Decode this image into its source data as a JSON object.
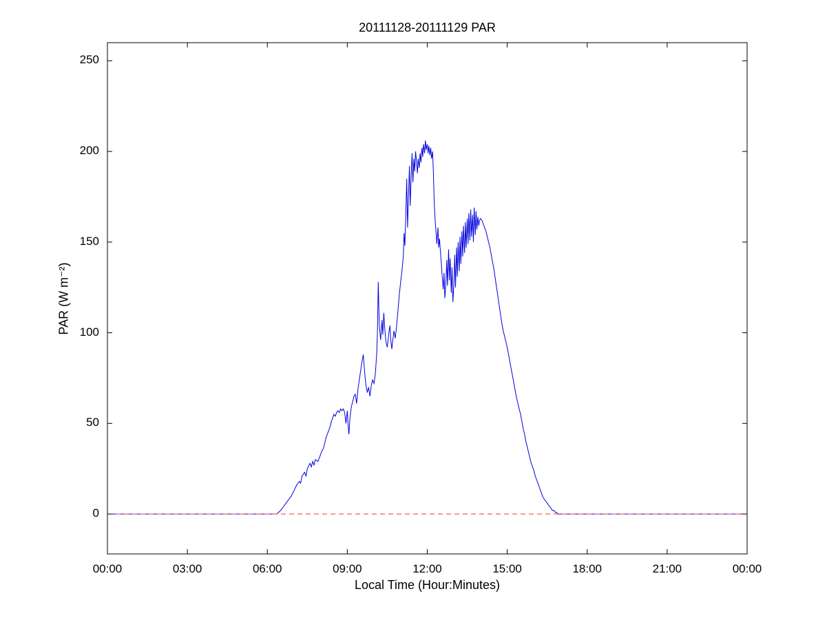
{
  "chart_data": {
    "type": "line",
    "title": "20111128-20111129 PAR",
    "xlabel": "Local Time (Hour:Minutes)",
    "ylabel": "PAR (W m⁻²)",
    "xlim": [
      0,
      24
    ],
    "ylim": [
      -22,
      260
    ],
    "grid": false,
    "legend": "none",
    "x_tick_values": [
      0,
      3,
      6,
      9,
      12,
      15,
      18,
      21,
      24
    ],
    "x_tick_labels": [
      "00:00",
      "03:00",
      "06:00",
      "09:00",
      "12:00",
      "15:00",
      "18:00",
      "21:00",
      "00:00"
    ],
    "y_tick_values": [
      0,
      50,
      100,
      150,
      200,
      250
    ],
    "y_tick_labels": [
      "0",
      "50",
      "100",
      "150",
      "200",
      "250"
    ],
    "colors": {
      "par_line": "#0000dd",
      "zero_line": "#ee3333",
      "axes": "#000000",
      "background": "#ffffff"
    },
    "series": [
      {
        "name": "par",
        "color": "#0000dd",
        "width": 1,
        "dash": null,
        "points": [
          [
            0,
            0
          ],
          [
            0.5,
            0
          ],
          [
            1,
            0
          ],
          [
            1.5,
            0
          ],
          [
            2,
            0
          ],
          [
            2.5,
            0
          ],
          [
            3,
            0
          ],
          [
            3.5,
            0
          ],
          [
            4,
            0
          ],
          [
            4.5,
            0
          ],
          [
            5,
            0
          ],
          [
            5.5,
            0
          ],
          [
            6,
            0
          ],
          [
            6.2,
            0
          ],
          [
            6.35,
            0
          ],
          [
            6.5,
            2
          ],
          [
            6.6,
            4
          ],
          [
            6.7,
            6
          ],
          [
            6.8,
            8
          ],
          [
            6.9,
            10
          ],
          [
            7.0,
            13
          ],
          [
            7.1,
            16
          ],
          [
            7.2,
            18
          ],
          [
            7.25,
            17
          ],
          [
            7.3,
            21
          ],
          [
            7.4,
            23
          ],
          [
            7.45,
            21
          ],
          [
            7.5,
            25
          ],
          [
            7.6,
            28
          ],
          [
            7.65,
            26
          ],
          [
            7.7,
            29
          ],
          [
            7.75,
            27
          ],
          [
            7.8,
            30
          ],
          [
            7.9,
            29
          ],
          [
            7.95,
            31
          ],
          [
            8.0,
            33
          ],
          [
            8.05,
            35
          ],
          [
            8.1,
            36
          ],
          [
            8.15,
            39
          ],
          [
            8.2,
            42
          ],
          [
            8.25,
            44
          ],
          [
            8.3,
            46
          ],
          [
            8.35,
            48
          ],
          [
            8.4,
            51
          ],
          [
            8.45,
            53
          ],
          [
            8.5,
            55
          ],
          [
            8.55,
            54
          ],
          [
            8.6,
            56
          ],
          [
            8.65,
            57
          ],
          [
            8.7,
            56
          ],
          [
            8.75,
            58
          ],
          [
            8.8,
            57
          ],
          [
            8.85,
            58
          ],
          [
            8.9,
            56
          ],
          [
            8.95,
            50
          ],
          [
            9.0,
            57
          ],
          [
            9.03,
            49
          ],
          [
            9.06,
            44
          ],
          [
            9.1,
            53
          ],
          [
            9.15,
            59
          ],
          [
            9.2,
            62
          ],
          [
            9.25,
            65
          ],
          [
            9.3,
            66
          ],
          [
            9.35,
            61
          ],
          [
            9.4,
            69
          ],
          [
            9.45,
            74
          ],
          [
            9.5,
            79
          ],
          [
            9.55,
            84
          ],
          [
            9.6,
            88
          ],
          [
            9.63,
            82
          ],
          [
            9.67,
            75
          ],
          [
            9.7,
            71
          ],
          [
            9.75,
            67
          ],
          [
            9.8,
            70
          ],
          [
            9.85,
            65
          ],
          [
            9.9,
            71
          ],
          [
            9.95,
            74
          ],
          [
            10.0,
            72
          ],
          [
            10.05,
            77
          ],
          [
            10.1,
            88
          ],
          [
            10.13,
            100
          ],
          [
            10.16,
            128
          ],
          [
            10.2,
            104
          ],
          [
            10.25,
            96
          ],
          [
            10.3,
            107
          ],
          [
            10.33,
            99
          ],
          [
            10.37,
            111
          ],
          [
            10.4,
            103
          ],
          [
            10.45,
            95
          ],
          [
            10.5,
            92
          ],
          [
            10.55,
            99
          ],
          [
            10.6,
            104
          ],
          [
            10.63,
            96
          ],
          [
            10.67,
            91
          ],
          [
            10.7,
            95
          ],
          [
            10.75,
            101
          ],
          [
            10.8,
            97
          ],
          [
            10.85,
            104
          ],
          [
            10.9,
            112
          ],
          [
            10.95,
            121
          ],
          [
            11.0,
            128
          ],
          [
            11.05,
            134
          ],
          [
            11.1,
            142
          ],
          [
            11.13,
            155
          ],
          [
            11.16,
            148
          ],
          [
            11.2,
            168
          ],
          [
            11.23,
            185
          ],
          [
            11.26,
            158
          ],
          [
            11.3,
            177
          ],
          [
            11.33,
            192
          ],
          [
            11.36,
            170
          ],
          [
            11.4,
            188
          ],
          [
            11.43,
            199
          ],
          [
            11.46,
            183
          ],
          [
            11.5,
            196
          ],
          [
            11.53,
            189
          ],
          [
            11.56,
            200
          ],
          [
            11.6,
            194
          ],
          [
            11.63,
            188
          ],
          [
            11.66,
            196
          ],
          [
            11.7,
            191
          ],
          [
            11.73,
            199
          ],
          [
            11.76,
            194
          ],
          [
            11.8,
            202
          ],
          [
            11.83,
            197
          ],
          [
            11.86,
            204
          ],
          [
            11.9,
            199
          ],
          [
            11.93,
            206
          ],
          [
            11.96,
            201
          ],
          [
            12.0,
            204
          ],
          [
            12.03,
            199
          ],
          [
            12.06,
            203
          ],
          [
            12.1,
            198
          ],
          [
            12.13,
            202
          ],
          [
            12.16,
            196
          ],
          [
            12.2,
            200
          ],
          [
            12.23,
            188
          ],
          [
            12.26,
            172
          ],
          [
            12.3,
            161
          ],
          [
            12.33,
            155
          ],
          [
            12.36,
            149
          ],
          [
            12.4,
            158
          ],
          [
            12.43,
            147
          ],
          [
            12.46,
            152
          ],
          [
            12.5,
            143
          ],
          [
            12.53,
            138
          ],
          [
            12.56,
            131
          ],
          [
            12.6,
            124
          ],
          [
            12.63,
            133
          ],
          [
            12.66,
            119
          ],
          [
            12.7,
            128
          ],
          [
            12.73,
            140
          ],
          [
            12.76,
            126
          ],
          [
            12.8,
            146
          ],
          [
            12.83,
            129
          ],
          [
            12.86,
            141
          ],
          [
            12.9,
            122
          ],
          [
            12.93,
            136
          ],
          [
            12.96,
            117
          ],
          [
            13.0,
            127
          ],
          [
            13.03,
            143
          ],
          [
            13.06,
            125
          ],
          [
            13.1,
            147
          ],
          [
            13.13,
            131
          ],
          [
            13.16,
            150
          ],
          [
            13.2,
            134
          ],
          [
            13.23,
            153
          ],
          [
            13.26,
            138
          ],
          [
            13.3,
            156
          ],
          [
            13.33,
            142
          ],
          [
            13.36,
            159
          ],
          [
            13.4,
            144
          ],
          [
            13.43,
            161
          ],
          [
            13.46,
            147
          ],
          [
            13.5,
            163
          ],
          [
            13.53,
            149
          ],
          [
            13.56,
            166
          ],
          [
            13.6,
            151
          ],
          [
            13.63,
            168
          ],
          [
            13.66,
            153
          ],
          [
            13.7,
            165
          ],
          [
            13.73,
            150
          ],
          [
            13.76,
            169
          ],
          [
            13.8,
            154
          ],
          [
            13.83,
            167
          ],
          [
            13.86,
            157
          ],
          [
            13.9,
            164
          ],
          [
            13.93,
            159
          ],
          [
            13.96,
            162
          ],
          [
            14.0,
            163
          ],
          [
            14.05,
            162
          ],
          [
            14.1,
            160
          ],
          [
            14.15,
            158
          ],
          [
            14.2,
            156
          ],
          [
            14.25,
            153
          ],
          [
            14.3,
            150
          ],
          [
            14.35,
            147
          ],
          [
            14.4,
            143
          ],
          [
            14.45,
            139
          ],
          [
            14.5,
            135
          ],
          [
            14.55,
            130
          ],
          [
            14.6,
            125
          ],
          [
            14.65,
            120
          ],
          [
            14.7,
            115
          ],
          [
            14.75,
            110
          ],
          [
            14.8,
            105
          ],
          [
            14.85,
            101
          ],
          [
            14.9,
            98
          ],
          [
            14.95,
            95
          ],
          [
            15.0,
            92
          ],
          [
            15.05,
            88
          ],
          [
            15.1,
            84
          ],
          [
            15.15,
            80
          ],
          [
            15.2,
            76
          ],
          [
            15.25,
            72
          ],
          [
            15.3,
            68
          ],
          [
            15.35,
            64
          ],
          [
            15.4,
            61
          ],
          [
            15.45,
            58
          ],
          [
            15.5,
            55
          ],
          [
            15.55,
            51
          ],
          [
            15.6,
            47
          ],
          [
            15.65,
            44
          ],
          [
            15.7,
            40
          ],
          [
            15.75,
            37
          ],
          [
            15.8,
            34
          ],
          [
            15.85,
            31
          ],
          [
            15.9,
            28
          ],
          [
            15.95,
            26
          ],
          [
            16.0,
            24
          ],
          [
            16.05,
            21
          ],
          [
            16.1,
            19
          ],
          [
            16.15,
            17
          ],
          [
            16.2,
            15
          ],
          [
            16.25,
            13
          ],
          [
            16.3,
            11
          ],
          [
            16.35,
            9
          ],
          [
            16.4,
            8
          ],
          [
            16.45,
            7
          ],
          [
            16.5,
            6
          ],
          [
            16.55,
            5
          ],
          [
            16.6,
            4
          ],
          [
            16.65,
            3
          ],
          [
            16.7,
            2
          ],
          [
            16.75,
            2
          ],
          [
            16.8,
            1
          ],
          [
            16.85,
            1
          ],
          [
            16.9,
            0
          ],
          [
            17.0,
            0
          ],
          [
            17.5,
            0
          ],
          [
            18.0,
            0
          ],
          [
            18.5,
            0
          ],
          [
            19.0,
            0
          ],
          [
            19.5,
            0
          ],
          [
            20.0,
            0
          ],
          [
            20.5,
            0
          ],
          [
            21.0,
            0
          ],
          [
            21.5,
            0
          ],
          [
            22.0,
            0
          ],
          [
            22.5,
            0
          ],
          [
            23.0,
            0
          ],
          [
            23.5,
            0
          ],
          [
            24.0,
            0
          ]
        ]
      },
      {
        "name": "zero-reference",
        "color": "#ee3333",
        "width": 1,
        "dash": "7 5",
        "points": [
          [
            0,
            0
          ],
          [
            24,
            0
          ]
        ]
      }
    ]
  }
}
